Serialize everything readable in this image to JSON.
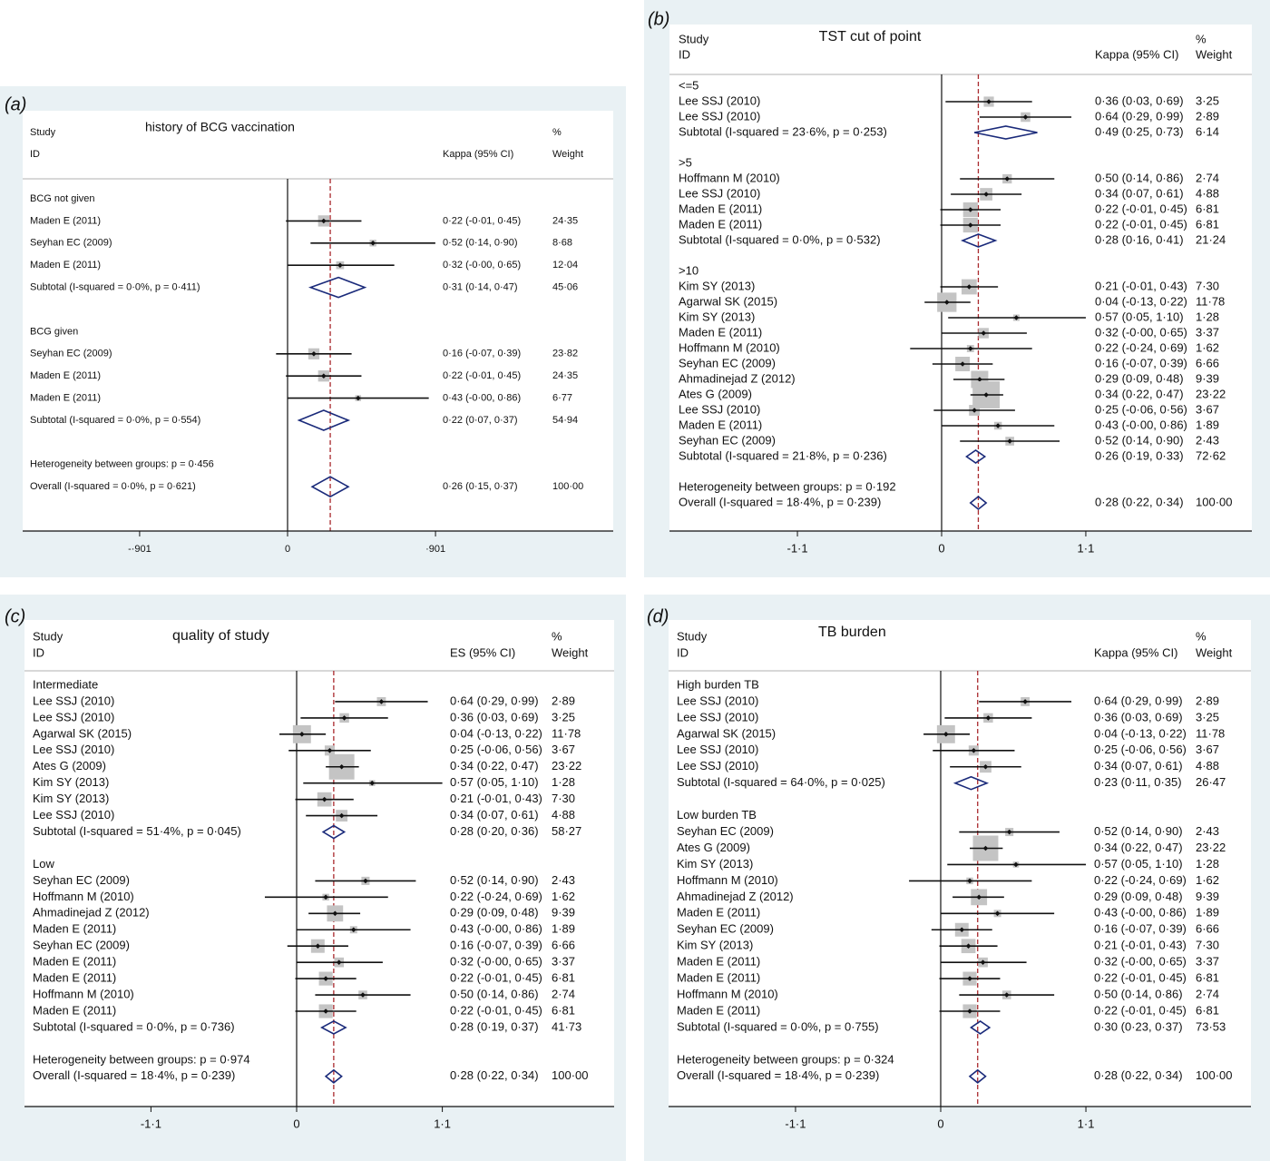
{
  "colors": {
    "panel_bg": "#e9f1f4",
    "plot_bg": "#ffffff",
    "box": "#c4c4c4",
    "diamond": "#1a2a7a",
    "overall_line": "#a8282c",
    "axis": "#111111"
  },
  "chart_data": [
    {
      "type": "forest",
      "panel_label": "(a)",
      "title": "history of BCG vaccination",
      "headers": {
        "study": "Study",
        "id": "ID",
        "ci": "Kappa (95% CI)",
        "pct": "%",
        "weight": "Weight"
      },
      "xticks": [
        {
          "value": -0.901,
          "label": "-·901"
        },
        {
          "value": 0,
          "label": "0"
        },
        {
          "value": 0.901,
          "label": "·901"
        }
      ],
      "overall_es": 0.26,
      "rows": [
        {
          "type": "group",
          "label": "BCG not given"
        },
        {
          "type": "study",
          "label": "Maden E (2011)",
          "ci": "0·22 (-0·01, 0·45)",
          "weight": "24·35"
        },
        {
          "type": "study",
          "label": "Seyhan EC (2009)",
          "ci": "0·52 (0·14, 0·90)",
          "weight": "8·68"
        },
        {
          "type": "study",
          "label": "Maden E (2011)",
          "ci": "0·32 (-0·00, 0·65)",
          "weight": "12·04"
        },
        {
          "type": "subtotal",
          "label": "Subtotal  (I-squared = 0·0%, p = 0·411)",
          "ci": "0·31 (0·14, 0·47)",
          "weight": "45·06"
        },
        {
          "type": "blank"
        },
        {
          "type": "group",
          "label": "BCG given"
        },
        {
          "type": "study",
          "label": "Seyhan EC (2009)",
          "ci": "0·16 (-0·07, 0·39)",
          "weight": "23·82"
        },
        {
          "type": "study",
          "label": "Maden E (2011)",
          "ci": "0·22 (-0·01, 0·45)",
          "weight": "24·35"
        },
        {
          "type": "study",
          "label": "Maden E (2011)",
          "ci": "0·43 (-0·00, 0·86)",
          "weight": "6·77"
        },
        {
          "type": "subtotal",
          "label": "Subtotal  (I-squared = 0·0%, p = 0·554)",
          "ci": "0·22 (0·07, 0·37)",
          "weight": "54·94"
        },
        {
          "type": "blank"
        },
        {
          "type": "het",
          "label": "Heterogeneity between groups: p = 0·456"
        },
        {
          "type": "overall",
          "label": "Overall  (I-squared = 0·0%, p = 0·621)",
          "ci": "0·26 (0·15, 0·37)",
          "weight": "100·00"
        }
      ]
    },
    {
      "type": "forest",
      "panel_label": "(b)",
      "title": "TST cut of point",
      "headers": {
        "study": "Study",
        "id": "ID",
        "ci": "Kappa (95% CI)",
        "pct": "%",
        "weight": "Weight"
      },
      "xticks": [
        {
          "value": -1.1,
          "label": "-1·1"
        },
        {
          "value": 0,
          "label": "0"
        },
        {
          "value": 1.1,
          "label": "1·1"
        }
      ],
      "overall_es": 0.28,
      "rows": [
        {
          "type": "group",
          "label": "<=5"
        },
        {
          "type": "study",
          "label": "Lee SSJ (2010)",
          "ci": "0·36 (0·03, 0·69)",
          "weight": "3·25"
        },
        {
          "type": "study",
          "label": "Lee SSJ (2010)",
          "ci": "0·64 (0·29, 0·99)",
          "weight": "2·89"
        },
        {
          "type": "subtotal",
          "label": "Subtotal  (I-squared = 23·6%, p = 0·253)",
          "ci": "0·49 (0·25, 0·73)",
          "weight": "6·14"
        },
        {
          "type": "blank"
        },
        {
          "type": "group",
          "label": ">5"
        },
        {
          "type": "study",
          "label": "Hoffmann M (2010)",
          "ci": "0·50 (0·14, 0·86)",
          "weight": "2·74"
        },
        {
          "type": "study",
          "label": "Lee SSJ (2010)",
          "ci": "0·34 (0·07, 0·61)",
          "weight": "4·88"
        },
        {
          "type": "study",
          "label": "Maden E (2011)",
          "ci": "0·22 (-0·01, 0·45)",
          "weight": "6·81"
        },
        {
          "type": "study",
          "label": "Maden E (2011)",
          "ci": "0·22 (-0·01, 0·45)",
          "weight": "6·81"
        },
        {
          "type": "subtotal",
          "label": "Subtotal  (I-squared = 0·0%, p = 0·532)",
          "ci": "0·28 (0·16, 0·41)",
          "weight": "21·24"
        },
        {
          "type": "blank"
        },
        {
          "type": "group",
          "label": ">10"
        },
        {
          "type": "study",
          "label": "Kim SY (2013)",
          "ci": "0·21 (-0·01, 0·43)",
          "weight": "7·30"
        },
        {
          "type": "study",
          "label": "Agarwal SK (2015)",
          "ci": "0·04 (-0·13, 0·22)",
          "weight": "11·78"
        },
        {
          "type": "study",
          "label": "Kim SY (2013)",
          "ci": "0·57 (0·05, 1·10)",
          "weight": "1·28"
        },
        {
          "type": "study",
          "label": "Maden E (2011)",
          "ci": "0·32 (-0·00, 0·65)",
          "weight": "3·37"
        },
        {
          "type": "study",
          "label": "Hoffmann M (2010)",
          "ci": "0·22 (-0·24, 0·69)",
          "weight": "1·62"
        },
        {
          "type": "study",
          "label": "Seyhan EC (2009)",
          "ci": "0·16 (-0·07, 0·39)",
          "weight": "6·66"
        },
        {
          "type": "study",
          "label": "Ahmadinejad Z (2012)",
          "ci": "0·29 (0·09, 0·48)",
          "weight": "9·39"
        },
        {
          "type": "study",
          "label": "Ates G (2009)",
          "ci": "0·34 (0·22, 0·47)",
          "weight": "23·22"
        },
        {
          "type": "study",
          "label": "Lee SSJ (2010)",
          "ci": "0·25 (-0·06, 0·56)",
          "weight": "3·67"
        },
        {
          "type": "study",
          "label": "Maden E (2011)",
          "ci": "0·43 (-0·00, 0·86)",
          "weight": "1·89"
        },
        {
          "type": "study",
          "label": "Seyhan EC (2009)",
          "ci": "0·52 (0·14, 0·90)",
          "weight": "2·43"
        },
        {
          "type": "subtotal",
          "label": "Subtotal  (I-squared = 21·8%, p = 0·236)",
          "ci": "0·26 (0·19, 0·33)",
          "weight": "72·62"
        },
        {
          "type": "blank"
        },
        {
          "type": "het",
          "label": "Heterogeneity between groups: p = 0·192"
        },
        {
          "type": "overall",
          "label": "Overall  (I-squared = 18·4%, p = 0·239)",
          "ci": "0·28 (0·22, 0·34)",
          "weight": "100·00"
        }
      ]
    },
    {
      "type": "forest",
      "panel_label": "(c)",
      "title": "quality of study",
      "headers": {
        "study": "Study",
        "id": "ID",
        "ci": "ES (95% CI)",
        "pct": "%",
        "weight": "Weight"
      },
      "xticks": [
        {
          "value": -1.1,
          "label": "-1·1"
        },
        {
          "value": 0,
          "label": "0"
        },
        {
          "value": 1.1,
          "label": "1·1"
        }
      ],
      "overall_es": 0.28,
      "rows": [
        {
          "type": "group",
          "label": "Intermediate"
        },
        {
          "type": "study",
          "label": "Lee SSJ (2010)",
          "ci": "0·64 (0·29, 0·99)",
          "weight": "2·89"
        },
        {
          "type": "study",
          "label": "Lee SSJ (2010)",
          "ci": "0·36 (0·03, 0·69)",
          "weight": "3·25"
        },
        {
          "type": "study",
          "label": "Agarwal SK (2015)",
          "ci": "0·04 (-0·13, 0·22)",
          "weight": "11·78"
        },
        {
          "type": "study",
          "label": "Lee SSJ (2010)",
          "ci": "0·25 (-0·06, 0·56)",
          "weight": "3·67"
        },
        {
          "type": "study",
          "label": "Ates G (2009)",
          "ci": "0·34 (0·22, 0·47)",
          "weight": "23·22"
        },
        {
          "type": "study",
          "label": "Kim SY (2013)",
          "ci": "0·57 (0·05, 1·10)",
          "weight": "1·28"
        },
        {
          "type": "study",
          "label": "Kim SY (2013)",
          "ci": "0·21 (-0·01, 0·43)",
          "weight": "7·30"
        },
        {
          "type": "study",
          "label": "Lee SSJ (2010)",
          "ci": "0·34 (0·07, 0·61)",
          "weight": "4·88"
        },
        {
          "type": "subtotal",
          "label": "Subtotal  (I-squared = 51·4%, p = 0·045)",
          "ci": "0·28 (0·20, 0·36)",
          "weight": "58·27"
        },
        {
          "type": "blank"
        },
        {
          "type": "group",
          "label": "Low"
        },
        {
          "type": "study",
          "label": "Seyhan EC (2009)",
          "ci": "0·52 (0·14, 0·90)",
          "weight": "2·43"
        },
        {
          "type": "study",
          "label": "Hoffmann M (2010)",
          "ci": "0·22 (-0·24, 0·69)",
          "weight": "1·62"
        },
        {
          "type": "study",
          "label": "Ahmadinejad Z (2012)",
          "ci": "0·29 (0·09, 0·48)",
          "weight": "9·39"
        },
        {
          "type": "study",
          "label": "Maden E (2011)",
          "ci": "0·43 (-0·00, 0·86)",
          "weight": "1·89"
        },
        {
          "type": "study",
          "label": "Seyhan EC (2009)",
          "ci": "0·16 (-0·07, 0·39)",
          "weight": "6·66"
        },
        {
          "type": "study",
          "label": "Maden E (2011)",
          "ci": "0·32 (-0·00, 0·65)",
          "weight": "3·37"
        },
        {
          "type": "study",
          "label": "Maden E (2011)",
          "ci": "0·22 (-0·01, 0·45)",
          "weight": "6·81"
        },
        {
          "type": "study",
          "label": "Hoffmann M (2010)",
          "ci": "0·50 (0·14, 0·86)",
          "weight": "2·74"
        },
        {
          "type": "study",
          "label": "Maden E (2011)",
          "ci": "0·22 (-0·01, 0·45)",
          "weight": "6·81"
        },
        {
          "type": "subtotal",
          "label": "Subtotal  (I-squared = 0·0%, p = 0·736)",
          "ci": "0·28 (0·19, 0·37)",
          "weight": "41·73"
        },
        {
          "type": "blank"
        },
        {
          "type": "het",
          "label": "Heterogeneity between groups: p = 0·974"
        },
        {
          "type": "overall",
          "label": "Overall  (I-squared = 18·4%, p = 0·239)",
          "ci": "0·28 (0·22, 0·34)",
          "weight": "100·00"
        }
      ]
    },
    {
      "type": "forest",
      "panel_label": "(d)",
      "title": "TB burden",
      "headers": {
        "study": "Study",
        "id": "ID",
        "ci": "Kappa (95% CI)",
        "pct": "%",
        "weight": "Weight"
      },
      "xticks": [
        {
          "value": -1.1,
          "label": "-1·1"
        },
        {
          "value": 0,
          "label": "0"
        },
        {
          "value": 1.1,
          "label": "1·1"
        }
      ],
      "overall_es": 0.28,
      "rows": [
        {
          "type": "group",
          "label": "High burden TB"
        },
        {
          "type": "study",
          "label": "Lee SSJ (2010)",
          "ci": "0·64 (0·29, 0·99)",
          "weight": "2·89"
        },
        {
          "type": "study",
          "label": "Lee SSJ (2010)",
          "ci": "0·36 (0·03, 0·69)",
          "weight": "3·25"
        },
        {
          "type": "study",
          "label": "Agarwal SK (2015)",
          "ci": "0·04 (-0·13, 0·22)",
          "weight": "11·78"
        },
        {
          "type": "study",
          "label": "Lee SSJ (2010)",
          "ci": "0·25 (-0·06, 0·56)",
          "weight": "3·67"
        },
        {
          "type": "study",
          "label": "Lee SSJ (2010)",
          "ci": "0·34 (0·07, 0·61)",
          "weight": "4·88"
        },
        {
          "type": "subtotal",
          "label": "Subtotal  (I-squared = 64·0%, p = 0·025)",
          "ci": "0·23 (0·11, 0·35)",
          "weight": "26·47"
        },
        {
          "type": "blank"
        },
        {
          "type": "group",
          "label": "Low burden TB"
        },
        {
          "type": "study",
          "label": "Seyhan EC (2009)",
          "ci": "0·52 (0·14, 0·90)",
          "weight": "2·43"
        },
        {
          "type": "study",
          "label": "Ates G (2009)",
          "ci": "0·34 (0·22, 0·47)",
          "weight": "23·22"
        },
        {
          "type": "study",
          "label": "Kim SY (2013)",
          "ci": "0·57 (0·05, 1·10)",
          "weight": "1·28"
        },
        {
          "type": "study",
          "label": "Hoffmann M (2010)",
          "ci": "0·22 (-0·24, 0·69)",
          "weight": "1·62"
        },
        {
          "type": "study",
          "label": "Ahmadinejad Z (2012)",
          "ci": "0·29 (0·09, 0·48)",
          "weight": "9·39"
        },
        {
          "type": "study",
          "label": "Maden E (2011)",
          "ci": "0·43 (-0·00, 0·86)",
          "weight": "1·89"
        },
        {
          "type": "study",
          "label": "Seyhan EC (2009)",
          "ci": "0·16 (-0·07, 0·39)",
          "weight": "6·66"
        },
        {
          "type": "study",
          "label": "Kim SY (2013)",
          "ci": "0·21 (-0·01, 0·43)",
          "weight": "7·30"
        },
        {
          "type": "study",
          "label": "Maden E (2011)",
          "ci": "0·32 (-0·00, 0·65)",
          "weight": "3·37"
        },
        {
          "type": "study",
          "label": "Maden E (2011)",
          "ci": "0·22 (-0·01, 0·45)",
          "weight": "6·81"
        },
        {
          "type": "study",
          "label": "Hoffmann M (2010)",
          "ci": "0·50 (0·14, 0·86)",
          "weight": "2·74"
        },
        {
          "type": "study",
          "label": "Maden E (2011)",
          "ci": "0·22 (-0·01, 0·45)",
          "weight": "6·81"
        },
        {
          "type": "subtotal",
          "label": "Subtotal  (I-squared = 0·0%, p = 0·755)",
          "ci": "0·30 (0·23, 0·37)",
          "weight": "73·53"
        },
        {
          "type": "blank"
        },
        {
          "type": "het",
          "label": "Heterogeneity between groups: p = 0·324"
        },
        {
          "type": "overall",
          "label": "Overall  (I-squared = 18·4%, p = 0·239)",
          "ci": "0·28 (0·22, 0·34)",
          "weight": "100·00"
        }
      ]
    }
  ]
}
